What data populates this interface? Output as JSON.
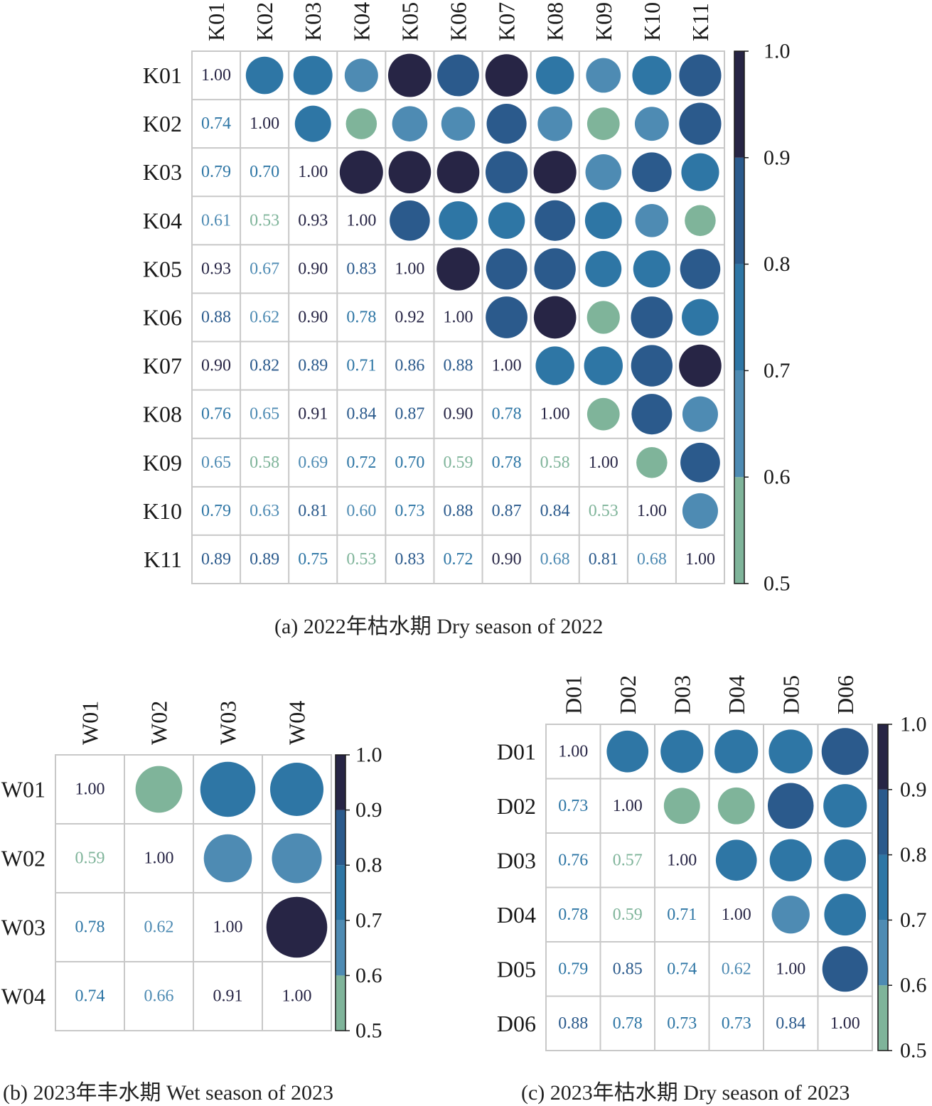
{
  "colors": {
    "bands": [
      "#7fb49a",
      "#4e8bb3",
      "#2e76a5",
      "#2b5a8c",
      "#272545"
    ],
    "grid": "#c8c8c8",
    "label": "#1a1a1a"
  },
  "chart_data": [
    {
      "type": "heatmap",
      "subtype": "correlation-matrix",
      "title": "(a) 2022年枯水期 Dry season of 2022",
      "labels": [
        "K01",
        "K02",
        "K03",
        "K04",
        "K05",
        "K06",
        "K07",
        "K08",
        "K09",
        "K10",
        "K11"
      ],
      "matrix": [
        [
          1.0,
          0.74,
          0.79,
          0.61,
          0.93,
          0.88,
          0.9,
          0.76,
          0.65,
          0.79,
          0.89
        ],
        [
          0.74,
          1.0,
          0.7,
          0.53,
          0.67,
          0.62,
          0.82,
          0.65,
          0.58,
          0.63,
          0.89
        ],
        [
          0.79,
          0.7,
          1.0,
          0.93,
          0.9,
          0.9,
          0.89,
          0.91,
          0.69,
          0.81,
          0.75
        ],
        [
          0.61,
          0.53,
          0.93,
          1.0,
          0.83,
          0.78,
          0.71,
          0.84,
          0.72,
          0.6,
          0.53
        ],
        [
          0.93,
          0.67,
          0.9,
          0.83,
          1.0,
          0.92,
          0.86,
          0.87,
          0.7,
          0.73,
          0.83
        ],
        [
          0.88,
          0.62,
          0.9,
          0.78,
          0.92,
          1.0,
          0.88,
          0.9,
          0.59,
          0.88,
          0.72
        ],
        [
          0.9,
          0.82,
          0.89,
          0.71,
          0.86,
          0.88,
          1.0,
          0.78,
          0.78,
          0.87,
          0.9
        ],
        [
          0.76,
          0.65,
          0.91,
          0.84,
          0.87,
          0.9,
          0.78,
          1.0,
          0.58,
          0.84,
          0.68
        ],
        [
          0.65,
          0.58,
          0.69,
          0.72,
          0.7,
          0.59,
          0.78,
          0.58,
          1.0,
          0.53,
          0.81
        ],
        [
          0.79,
          0.63,
          0.81,
          0.6,
          0.73,
          0.88,
          0.87,
          0.84,
          0.53,
          1.0,
          0.68
        ],
        [
          0.89,
          0.89,
          0.75,
          0.53,
          0.83,
          0.72,
          0.9,
          0.68,
          0.81,
          0.68,
          1.0
        ]
      ],
      "lower_triangle": "numbers",
      "upper_triangle": "circles",
      "colorbar": {
        "range": [
          0.5,
          1.0
        ],
        "ticks": [
          "1.0",
          "0.9",
          "0.8",
          "0.7",
          "0.6",
          "0.5"
        ]
      }
    },
    {
      "type": "heatmap",
      "subtype": "correlation-matrix",
      "title": "(b) 2023年丰水期 Wet season of 2023",
      "labels": [
        "W01",
        "W02",
        "W03",
        "W04"
      ],
      "matrix": [
        [
          1.0,
          0.59,
          0.78,
          0.74
        ],
        [
          0.59,
          1.0,
          0.62,
          0.66
        ],
        [
          0.78,
          0.62,
          1.0,
          0.91
        ],
        [
          0.74,
          0.66,
          0.91,
          1.0
        ]
      ],
      "lower_triangle": "numbers",
      "upper_triangle": "circles",
      "colorbar": {
        "range": [
          0.5,
          1.0
        ],
        "ticks": [
          "1.0",
          "0.9",
          "0.8",
          "0.7",
          "0.6",
          "0.5"
        ]
      }
    },
    {
      "type": "heatmap",
      "subtype": "correlation-matrix",
      "title": "(c) 2023年枯水期 Dry season of 2023",
      "labels": [
        "D01",
        "D02",
        "D03",
        "D04",
        "D05",
        "D06"
      ],
      "matrix": [
        [
          1.0,
          0.73,
          0.76,
          0.78,
          0.79,
          0.88
        ],
        [
          0.73,
          1.0,
          0.57,
          0.59,
          0.85,
          0.78
        ],
        [
          0.76,
          0.57,
          1.0,
          0.71,
          0.74,
          0.73
        ],
        [
          0.78,
          0.59,
          0.71,
          1.0,
          0.62,
          0.73
        ],
        [
          0.79,
          0.85,
          0.74,
          0.62,
          1.0,
          0.84
        ],
        [
          0.88,
          0.78,
          0.73,
          0.73,
          0.84,
          1.0
        ]
      ],
      "lower_triangle": "numbers",
      "upper_triangle": "circles",
      "colorbar": {
        "range": [
          0.5,
          1.0
        ],
        "ticks": [
          "1.0",
          "0.9",
          "0.8",
          "0.7",
          "0.6",
          "0.5"
        ]
      }
    }
  ]
}
